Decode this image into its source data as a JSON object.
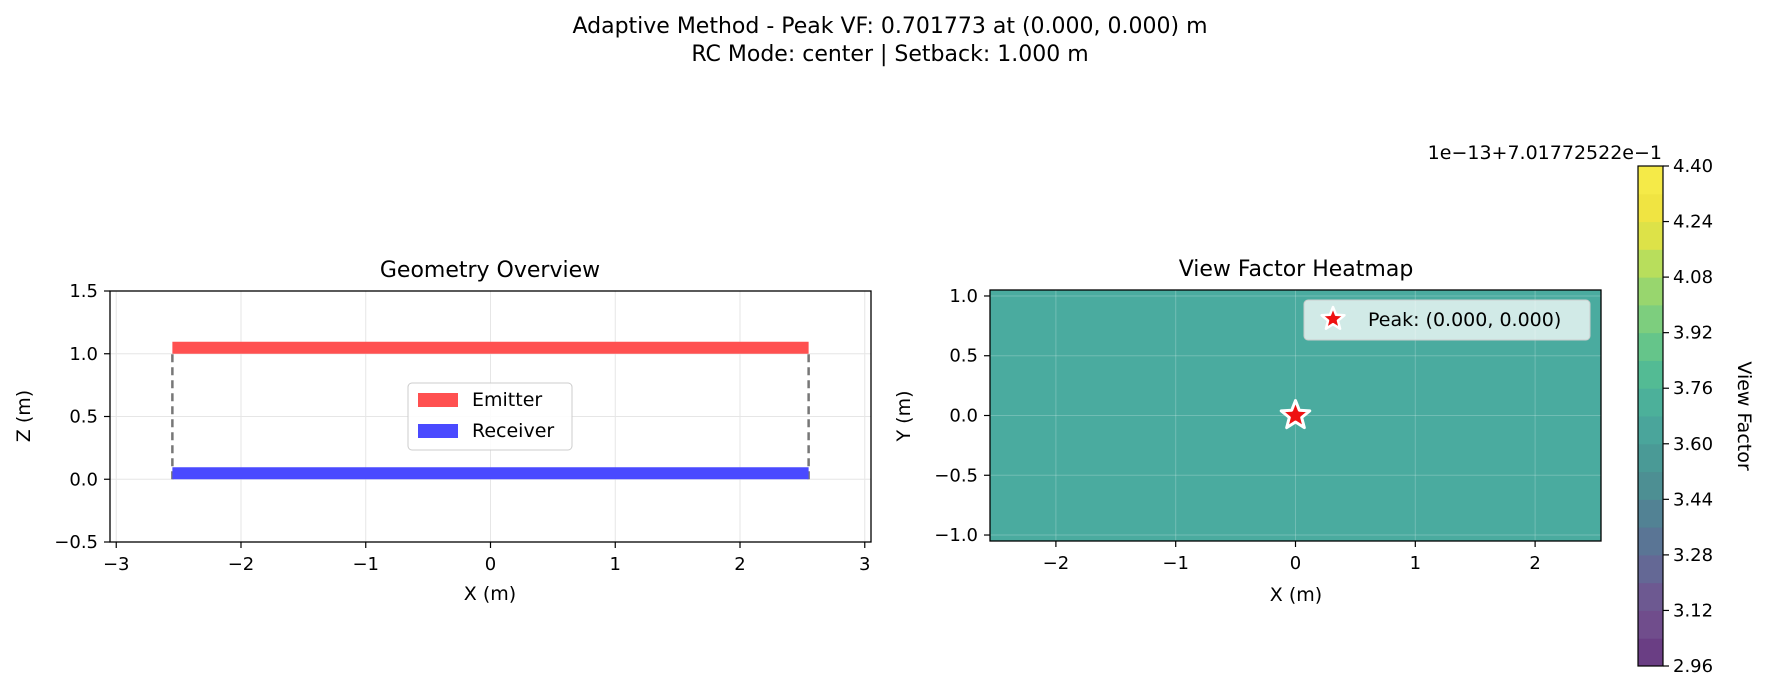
{
  "suptitle": {
    "line1": "Adaptive Method - Peak VF: 0.701773 at (0.000, 0.000) m",
    "line2": "RC Mode: center | Setback: 1.000 m"
  },
  "chart_data": [
    {
      "type": "bar",
      "title": "Geometry Overview",
      "xlabel": "X (m)",
      "ylabel": "Z (m)",
      "xlim": [
        -3.05,
        3.05
      ],
      "ylim": [
        -0.5,
        1.5
      ],
      "xticks": [
        -3,
        -2,
        -1,
        0,
        1,
        2,
        3
      ],
      "xtick_labels": [
        "−3",
        "−2",
        "−1",
        "0",
        "1",
        "2",
        "3"
      ],
      "yticks": [
        -0.5,
        0.0,
        0.5,
        1.0,
        1.5
      ],
      "ytick_labels": [
        "−0.5",
        "0.0",
        "0.5",
        "1.0",
        "1.5"
      ],
      "grid": true,
      "legend_position": "center",
      "surfaces": [
        {
          "name": "Emitter",
          "x": [
            -2.55,
            2.55
          ],
          "z": 1.0,
          "color": "#ff5050"
        },
        {
          "name": "Receiver",
          "x": [
            -2.55,
            2.55
          ],
          "z": 0.0,
          "color": "#4a4aff"
        }
      ],
      "connectors": [
        {
          "x": -2.55,
          "z": [
            0.0,
            1.0
          ]
        },
        {
          "x": 2.55,
          "z": [
            0.0,
            1.0
          ]
        }
      ]
    },
    {
      "type": "heatmap",
      "title": "View Factor Heatmap",
      "xlabel": "X (m)",
      "ylabel": "Y (m)",
      "xlim": [
        -2.55,
        2.55
      ],
      "ylim": [
        -1.05,
        1.05
      ],
      "xticks": [
        -2,
        -1,
        0,
        1,
        2
      ],
      "xtick_labels": [
        "−2",
        "−1",
        "0",
        "1",
        "2"
      ],
      "yticks": [
        -1.0,
        -0.5,
        0.0,
        0.5,
        1.0
      ],
      "ytick_labels": [
        "−1.0",
        "−0.5",
        "0.0",
        "0.5",
        "1.0"
      ],
      "grid": true,
      "fill_value_colorbar_units": 3.76,
      "fill_color": "#4aab9f",
      "peak": {
        "x": 0.0,
        "y": 0.0,
        "label": "Peak: (0.000, 0.000)",
        "marker_color": "#ee1111"
      },
      "legend_position": "upper right",
      "colorbar": {
        "label": "View Factor",
        "offset_text": "1e−13+7.01772522e−1",
        "range": [
          2.96,
          4.4
        ],
        "ticks": [
          "2.96",
          "3.12",
          "3.28",
          "3.44",
          "3.60",
          "3.76",
          "3.92",
          "4.08",
          "4.24",
          "4.40"
        ],
        "colors": [
          "#6a3e84",
          "#704d8c",
          "#6d5991",
          "#646895",
          "#5a7595",
          "#528294",
          "#4d8f93",
          "#4a9a96",
          "#4aa59b",
          "#4cb09a",
          "#53bb94",
          "#65c58a",
          "#7dce7e",
          "#98d66e",
          "#b8de5c",
          "#dde248",
          "#f0e442",
          "#f5ea48"
        ]
      }
    }
  ]
}
